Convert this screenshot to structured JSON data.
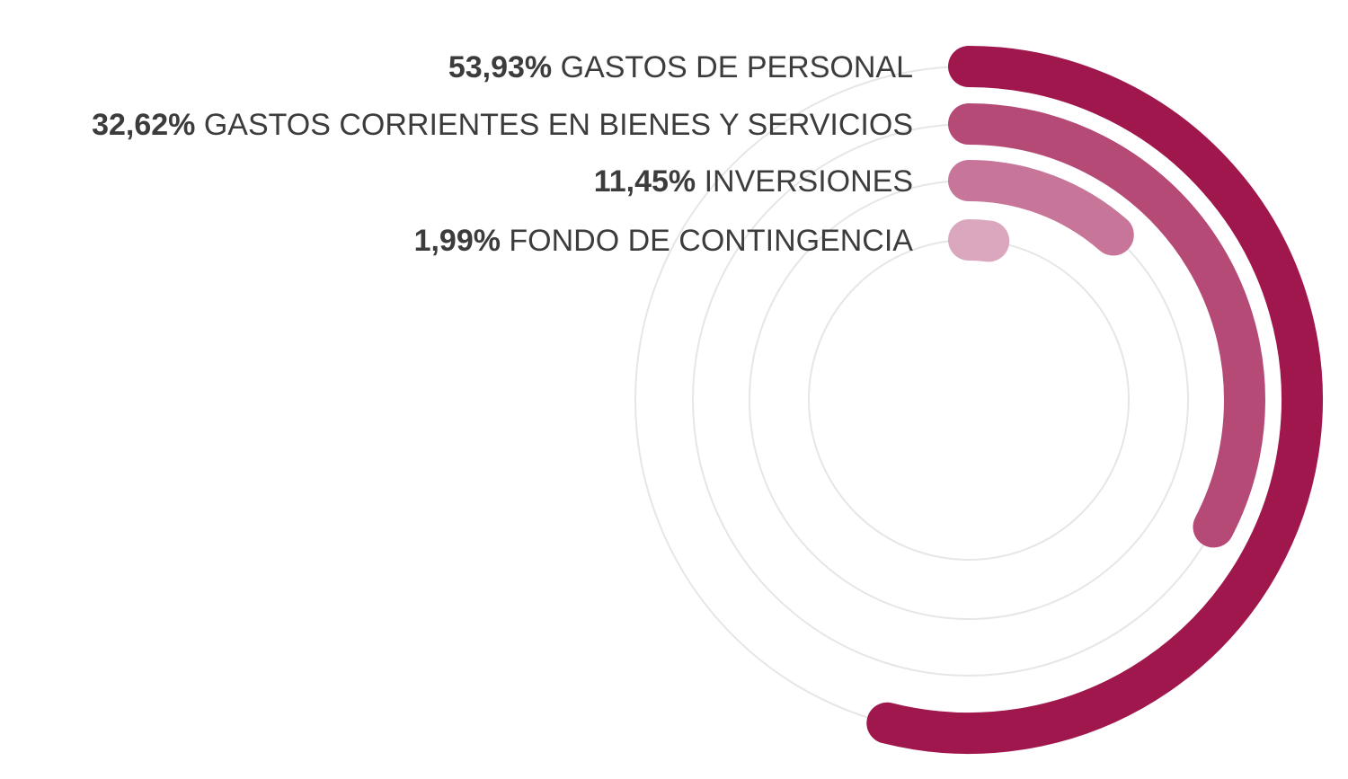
{
  "chart_data": {
    "type": "radial-bar",
    "unit": "%",
    "max": 100,
    "start_angle": "top",
    "direction": "clockwise",
    "legend_placement": "left-of-arcs",
    "series": [
      {
        "name": "GASTOS DE PERSONAL",
        "value": 53.93,
        "value_label": "53,93%",
        "color": "#a0174d"
      },
      {
        "name": "GASTOS CORRIENTES EN BIENES Y SERVICIOS",
        "value": 32.62,
        "value_label": "32,62%",
        "color": "#b54a76"
      },
      {
        "name": "INVERSIONES",
        "value": 11.45,
        "value_label": "11,45%",
        "color": "#c77699"
      },
      {
        "name": "FONDO DE CONTINGENCIA",
        "value": 1.99,
        "value_label": "1,99%",
        "color": "#dba7bf"
      }
    ],
    "track_color": "#e6e6e6",
    "grid": false
  }
}
